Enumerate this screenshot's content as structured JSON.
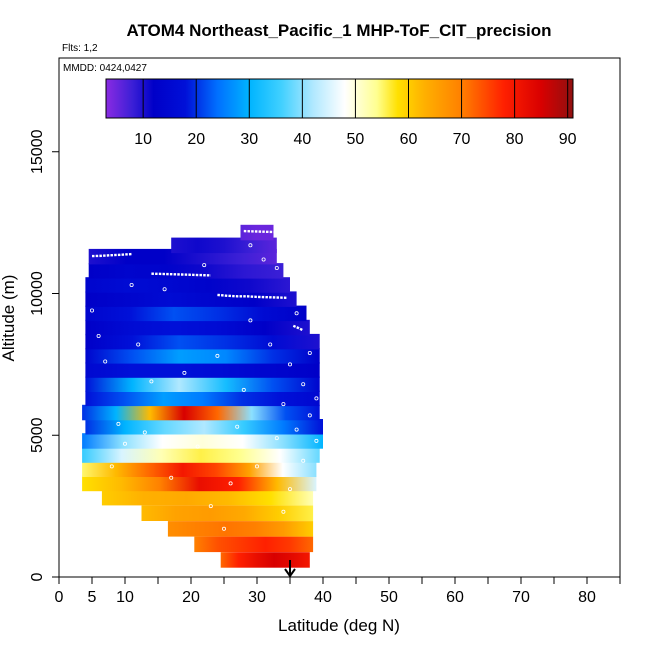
{
  "chart_data": {
    "type": "heatmap",
    "title": "ATOM4 Northeast_Pacific_1 MHP-ToF_CIT_precision",
    "flights_label": "Flts: 1,2",
    "mmdd_label": "MMDD: 0424,0427",
    "xlabel": "Latitude (deg N)",
    "ylabel": "Altitude (m)",
    "xlim": [
      0,
      85
    ],
    "ylim": [
      0,
      17500
    ],
    "x_ticks": [
      0,
      5,
      10,
      20,
      30,
      40,
      50,
      60,
      70,
      80
    ],
    "x_minor_ticks": [
      15,
      25,
      35,
      45,
      55,
      65,
      75,
      85
    ],
    "y_ticks": [
      0,
      5000,
      10000,
      15000
    ],
    "colorbar": {
      "range": [
        3,
        91
      ],
      "ticks": [
        10,
        20,
        30,
        40,
        50,
        60,
        70,
        80,
        90
      ],
      "stops": [
        [
          3,
          "#8a2be2"
        ],
        [
          8,
          "#3b1fd6"
        ],
        [
          12,
          "#0000c8"
        ],
        [
          18,
          "#0010d8"
        ],
        [
          24,
          "#0070ff"
        ],
        [
          30,
          "#00b4ff"
        ],
        [
          36,
          "#40d0ff"
        ],
        [
          42,
          "#b0e8ff"
        ],
        [
          48,
          "#ffffff"
        ],
        [
          54,
          "#ffff90"
        ],
        [
          58,
          "#ffe000"
        ],
        [
          63,
          "#ffb000"
        ],
        [
          70,
          "#ff8000"
        ],
        [
          78,
          "#ff2000"
        ],
        [
          85,
          "#d80000"
        ],
        [
          91,
          "#901010"
        ]
      ]
    },
    "bands": [
      {
        "alt": 600,
        "lat": [
          24.5,
          38
        ],
        "values": [
          72,
          78,
          82,
          85,
          83,
          80
        ]
      },
      {
        "alt": 1150,
        "lat": [
          20.5,
          38.5
        ],
        "values": [
          70,
          74,
          76,
          78,
          76,
          72
        ]
      },
      {
        "alt": 1700,
        "lat": [
          16.5,
          38.5
        ],
        "values": [
          68,
          70,
          71,
          70,
          66,
          60
        ]
      },
      {
        "alt": 2250,
        "lat": [
          12.5,
          38.5
        ],
        "values": [
          62,
          65,
          66,
          64,
          60,
          56
        ]
      },
      {
        "alt": 2800,
        "lat": [
          6.5,
          38.5
        ],
        "values": [
          60,
          63,
          64,
          62,
          58,
          52
        ]
      },
      {
        "alt": 3300,
        "lat": [
          3.5,
          39
        ],
        "values": [
          58,
          62,
          70,
          82,
          78,
          62,
          45
        ]
      },
      {
        "alt": 3800,
        "lat": [
          3.5,
          39
        ],
        "values": [
          55,
          62,
          72,
          80,
          75,
          65,
          48,
          40
        ]
      },
      {
        "alt": 4300,
        "lat": [
          3.5,
          39.5
        ],
        "values": [
          35,
          45,
          52,
          56,
          54,
          48,
          38
        ]
      },
      {
        "alt": 4800,
        "lat": [
          3.5,
          40
        ],
        "values": [
          25,
          40,
          48,
          50,
          48,
          40,
          30
        ]
      },
      {
        "alt": 5300,
        "lat": [
          4,
          40
        ],
        "values": [
          20,
          30,
          38,
          42,
          35,
          25,
          18
        ]
      },
      {
        "alt": 5800,
        "lat": [
          3.5,
          39.5
        ],
        "values": [
          20,
          30,
          62,
          85,
          72,
          40,
          22,
          18
        ]
      },
      {
        "alt": 6300,
        "lat": [
          4,
          39.5
        ],
        "values": [
          18,
          22,
          28,
          25,
          20,
          18,
          15
        ]
      },
      {
        "alt": 6800,
        "lat": [
          4,
          39.5
        ],
        "values": [
          18,
          30,
          42,
          32,
          22,
          14
        ]
      },
      {
        "alt": 7300,
        "lat": [
          4,
          39.5
        ],
        "values": [
          15,
          18,
          18,
          16,
          14,
          12
        ]
      },
      {
        "alt": 7800,
        "lat": [
          4,
          39.5
        ],
        "values": [
          14,
          22,
          28,
          26,
          20,
          12
        ]
      },
      {
        "alt": 8300,
        "lat": [
          4,
          39.5
        ],
        "values": [
          12,
          18,
          22,
          20,
          16,
          10
        ]
      },
      {
        "alt": 8800,
        "lat": [
          4,
          38
        ],
        "values": [
          12,
          16,
          18,
          16,
          12,
          10
        ]
      },
      {
        "alt": 9300,
        "lat": [
          4,
          37.5
        ],
        "values": [
          14,
          18,
          22,
          20,
          16,
          12
        ]
      },
      {
        "alt": 9800,
        "lat": [
          4,
          36
        ],
        "values": [
          12,
          14,
          16,
          14,
          12,
          10
        ]
      },
      {
        "alt": 10300,
        "lat": [
          4,
          35
        ],
        "values": [
          14,
          16,
          15,
          13,
          11,
          9
        ]
      },
      {
        "alt": 10800,
        "lat": [
          4.5,
          34
        ],
        "values": [
          12,
          14,
          13,
          11,
          9,
          8
        ]
      },
      {
        "alt": 11300,
        "lat": [
          4.5,
          33
        ],
        "values": [
          10,
          12,
          12,
          10,
          8,
          6
        ]
      },
      {
        "alt": 11700,
        "lat": [
          17,
          33
        ],
        "values": [
          10,
          11,
          10,
          8,
          6
        ]
      },
      {
        "alt": 12150,
        "lat": [
          27.5,
          32.5
        ],
        "values": [
          6,
          5,
          5
        ]
      }
    ],
    "flight_tracks": [
      {
        "lat": [
          5,
          6.5,
          8,
          9.5,
          11
        ],
        "alt": [
          11320,
          11330,
          11350,
          11370,
          11390
        ]
      },
      {
        "lat": [
          14,
          15.5,
          17,
          18.5,
          20,
          21.5,
          23
        ],
        "alt": [
          10700,
          10690,
          10680,
          10670,
          10660,
          10650,
          10640
        ]
      },
      {
        "lat": [
          24,
          25.5,
          27,
          28.5,
          30,
          31.5,
          33,
          34.5
        ],
        "alt": [
          9950,
          9920,
          9900,
          9900,
          9880,
          9870,
          9860,
          9850
        ]
      },
      {
        "lat": [
          35.5,
          36.3,
          37
        ],
        "alt": [
          8860,
          8780,
          8700
        ]
      },
      {
        "lat": [
          28,
          29.5,
          31,
          32.5
        ],
        "alt": [
          12200,
          12190,
          12180,
          12170
        ]
      }
    ],
    "scatter_points": [
      {
        "lat": 5,
        "alt": 9400
      },
      {
        "lat": 6,
        "alt": 8500
      },
      {
        "lat": 7,
        "alt": 7600
      },
      {
        "lat": 9,
        "alt": 5400
      },
      {
        "lat": 8,
        "alt": 3900
      },
      {
        "lat": 10,
        "alt": 4700
      },
      {
        "lat": 12,
        "alt": 8200
      },
      {
        "lat": 14,
        "alt": 6900
      },
      {
        "lat": 16,
        "alt": 10150
      },
      {
        "lat": 19,
        "alt": 7200
      },
      {
        "lat": 21,
        "alt": 4600
      },
      {
        "lat": 23,
        "alt": 2500
      },
      {
        "lat": 25,
        "alt": 1700
      },
      {
        "lat": 26,
        "alt": 3300
      },
      {
        "lat": 27,
        "alt": 5300
      },
      {
        "lat": 28,
        "alt": 6600
      },
      {
        "lat": 29,
        "alt": 9050
      },
      {
        "lat": 30,
        "alt": 3900
      },
      {
        "lat": 31,
        "alt": 11200
      },
      {
        "lat": 32,
        "alt": 8200
      },
      {
        "lat": 33,
        "alt": 10900
      },
      {
        "lat": 33,
        "alt": 4900
      },
      {
        "lat": 34,
        "alt": 6100
      },
      {
        "lat": 35,
        "alt": 7500
      },
      {
        "lat": 35,
        "alt": 3100
      },
      {
        "lat": 36,
        "alt": 5200
      },
      {
        "lat": 37,
        "alt": 6800
      },
      {
        "lat": 37,
        "alt": 4100
      },
      {
        "lat": 38,
        "alt": 7900
      },
      {
        "lat": 38,
        "alt": 5700
      },
      {
        "lat": 39,
        "alt": 6300
      },
      {
        "lat": 39,
        "alt": 4800
      },
      {
        "lat": 36,
        "alt": 9300
      },
      {
        "lat": 34,
        "alt": 2300
      },
      {
        "lat": 11,
        "alt": 10300
      },
      {
        "lat": 17,
        "alt": 3500
      },
      {
        "lat": 22,
        "alt": 11000
      },
      {
        "lat": 29,
        "alt": 11700
      },
      {
        "lat": 24,
        "alt": 7800
      },
      {
        "lat": 13,
        "alt": 5100
      }
    ],
    "marker": {
      "lat": 35,
      "alt_top": 600,
      "alt_bottom": 0,
      "description": "down-arrow"
    }
  }
}
